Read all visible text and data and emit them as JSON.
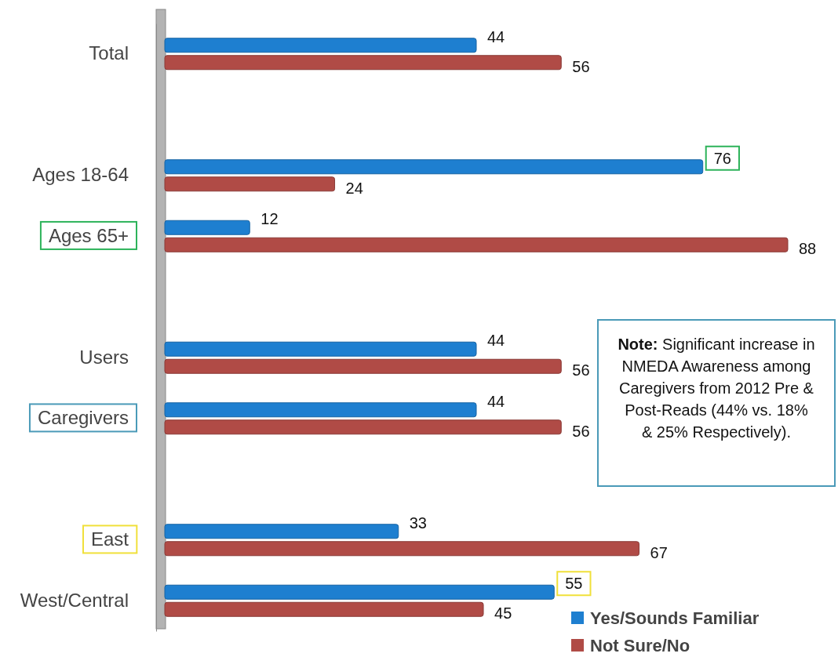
{
  "chart_data": {
    "type": "bar",
    "orientation": "horizontal",
    "categories": [
      "Total",
      null,
      "Ages 18-64",
      "Ages 65+",
      null,
      "Users",
      "Caregivers",
      null,
      "East",
      "West/Central"
    ],
    "series": [
      {
        "name": "Yes/Sounds Familiar",
        "color": "#1e7fd0",
        "values": [
          44,
          null,
          76,
          12,
          null,
          44,
          44,
          null,
          33,
          55
        ]
      },
      {
        "name": "Not Sure/No",
        "color": "#b04b46",
        "values": [
          56,
          null,
          24,
          88,
          null,
          56,
          56,
          null,
          67,
          45
        ]
      }
    ],
    "data_labels": true,
    "legend": "bottom right",
    "annotations": [
      "Note: Significant increase in NMEDA Awareness among Caregivers from 2012 Pre & Post-Reads (44% vs. 18% & 25% Respectively)."
    ]
  }
}
